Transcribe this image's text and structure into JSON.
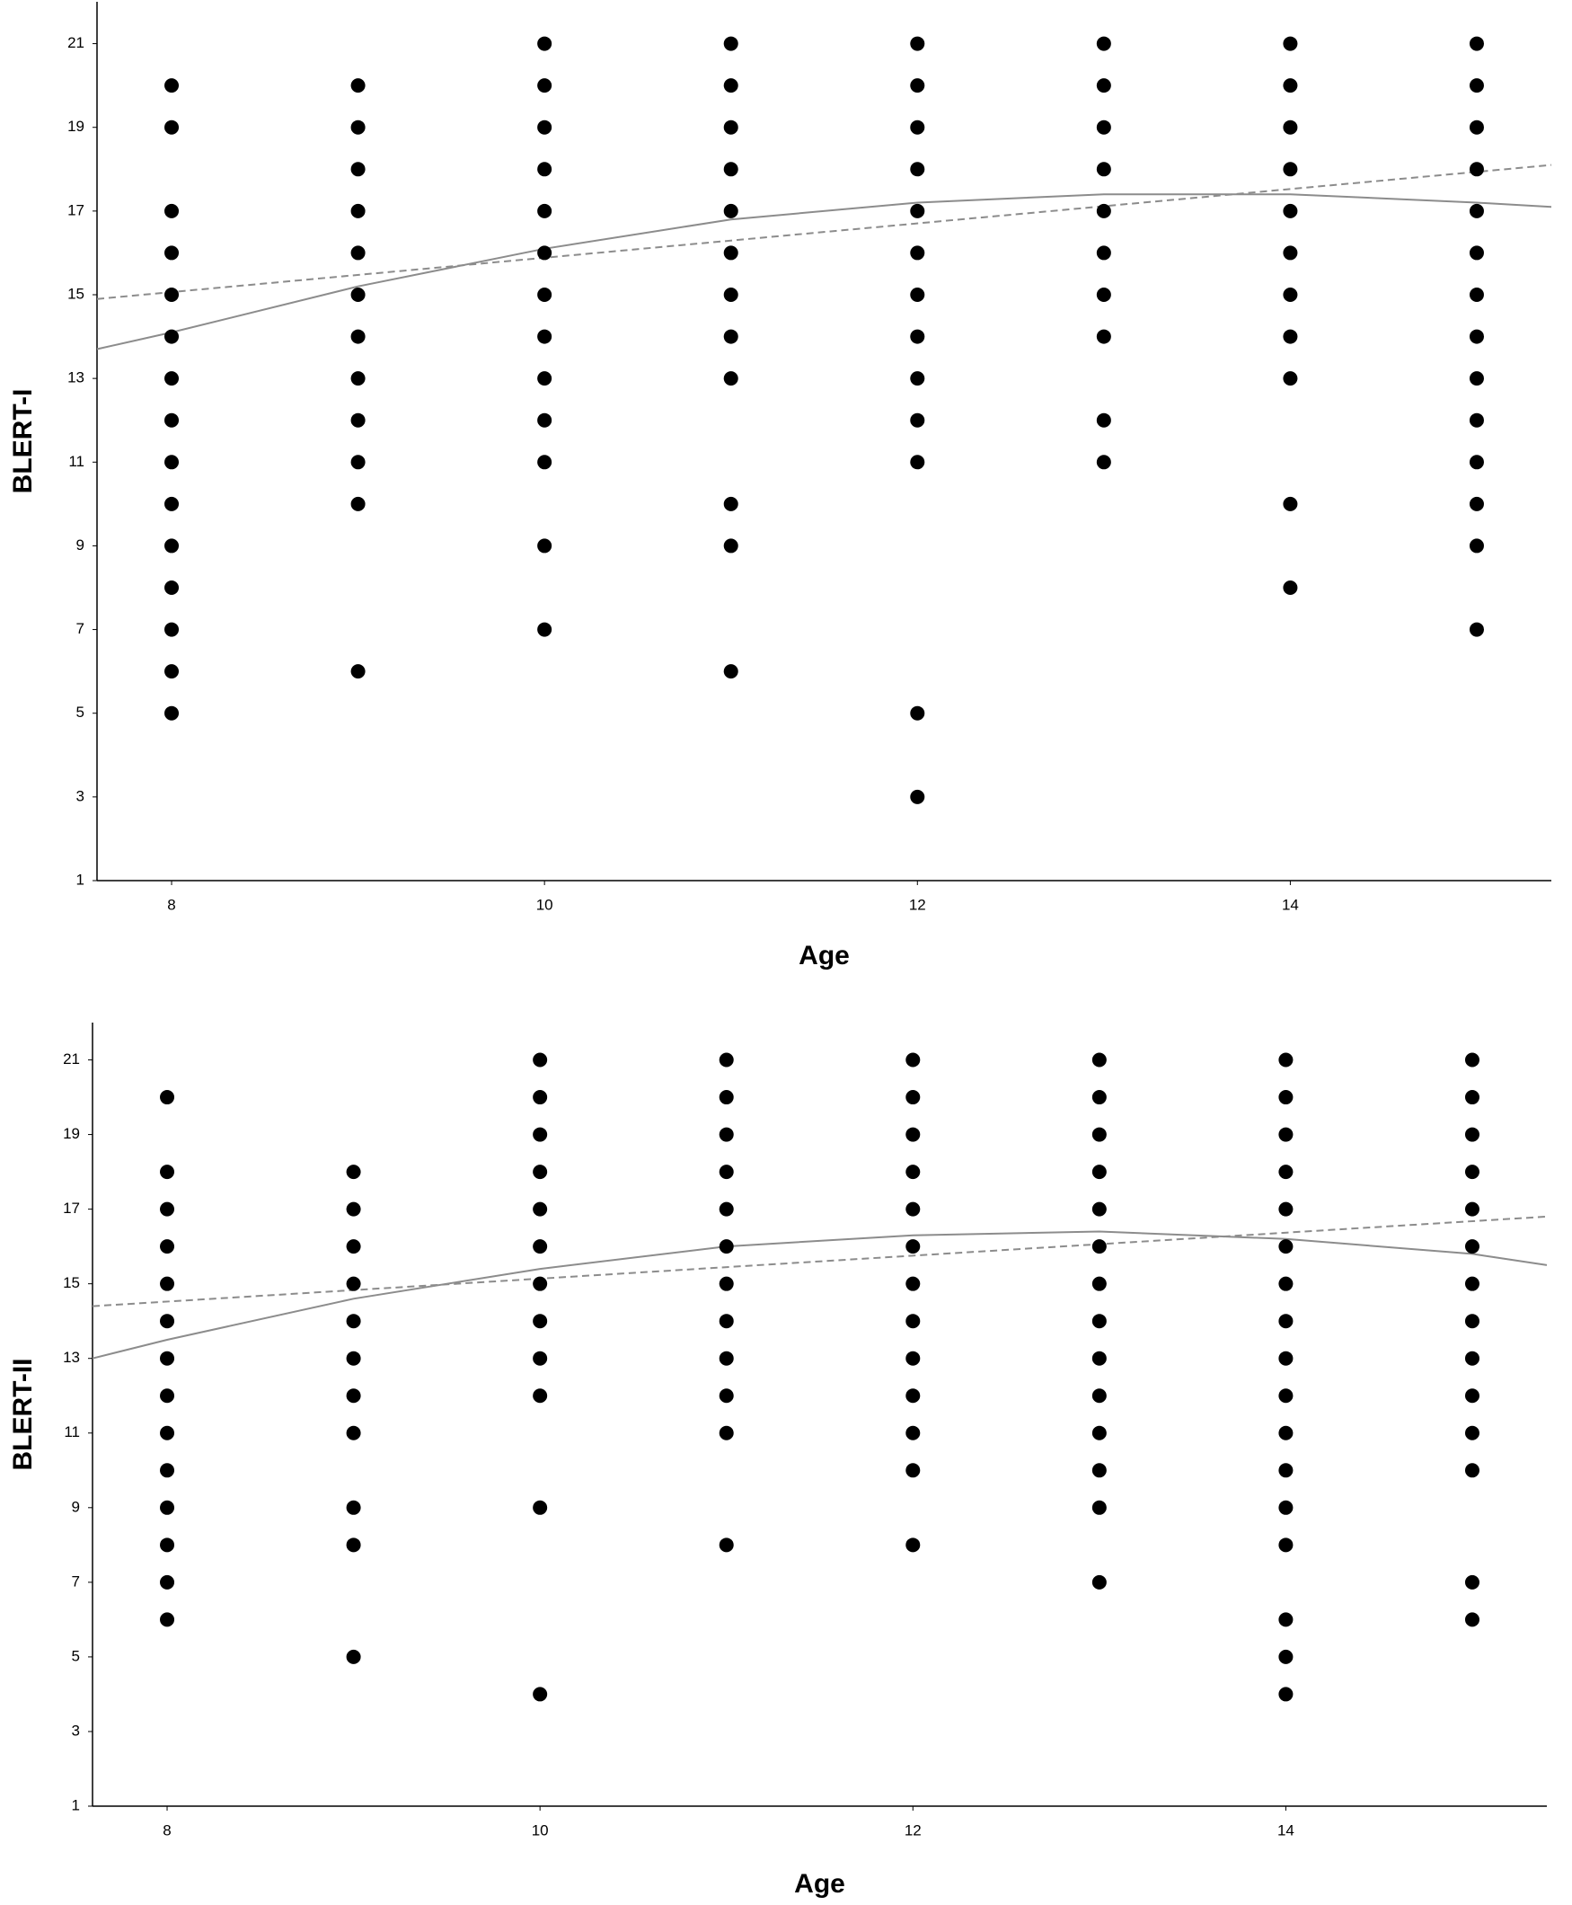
{
  "chart_data": [
    {
      "type": "scatter",
      "x_label": "Age",
      "y_label": "BLERT-I",
      "xlim": [
        7.6,
        15.4
      ],
      "ylim": [
        1,
        22
      ],
      "xticks": [
        8,
        10,
        12,
        14
      ],
      "yticks": [
        1,
        3,
        5,
        7,
        9,
        11,
        13,
        15,
        17,
        19,
        21
      ],
      "color": "#000000",
      "grid": false,
      "series": [
        {
          "x": 8,
          "values": [
            20,
            19,
            17,
            16,
            15,
            14,
            13,
            12,
            11,
            10,
            9,
            8,
            7,
            6,
            5
          ]
        },
        {
          "x": 9,
          "values": [
            20,
            19,
            18,
            17,
            16,
            15,
            14,
            13,
            12,
            11,
            10,
            6
          ]
        },
        {
          "x": 10,
          "values": [
            21,
            20,
            19,
            18,
            17,
            16,
            15,
            14,
            13,
            12,
            11,
            9,
            7
          ]
        },
        {
          "x": 11,
          "values": [
            21,
            20,
            19,
            18,
            17,
            16,
            15,
            14,
            13,
            10,
            9,
            6
          ]
        },
        {
          "x": 12,
          "values": [
            21,
            20,
            19,
            18,
            17,
            16,
            15,
            14,
            13,
            12,
            11,
            5,
            3
          ]
        },
        {
          "x": 13,
          "values": [
            21,
            20,
            19,
            18,
            17,
            16,
            15,
            14,
            12,
            11
          ]
        },
        {
          "x": 14,
          "values": [
            21,
            20,
            19,
            18,
            17,
            16,
            15,
            14,
            13,
            10,
            8
          ]
        },
        {
          "x": 15,
          "values": [
            21,
            20,
            19,
            18,
            17,
            16,
            15,
            14,
            13,
            12,
            11,
            10,
            9,
            7
          ]
        }
      ],
      "fit_lines": [
        {
          "style": "solid",
          "color": "#8c8c8c",
          "x": [
            7.6,
            8,
            9,
            10,
            11,
            12,
            13,
            14,
            15,
            15.4
          ],
          "values": [
            13.7,
            14.1,
            15.2,
            16.1,
            16.8,
            17.2,
            17.4,
            17.4,
            17.2,
            17.1
          ]
        },
        {
          "style": "dashed",
          "color": "#8c8c8c",
          "x": [
            7.6,
            15.4
          ],
          "values": [
            14.9,
            18.1
          ]
        }
      ]
    },
    {
      "type": "scatter",
      "x_label": "Age",
      "y_label": "BLERT-II",
      "xlim": [
        7.6,
        15.4
      ],
      "ylim": [
        1,
        22
      ],
      "xticks": [
        8,
        10,
        12,
        14
      ],
      "yticks": [
        1,
        3,
        5,
        7,
        9,
        11,
        13,
        15,
        17,
        19,
        21
      ],
      "color": "#000000",
      "grid": false,
      "series": [
        {
          "x": 8,
          "values": [
            20,
            18,
            17,
            16,
            15,
            14,
            13,
            12,
            11,
            10,
            9,
            8,
            7,
            6
          ]
        },
        {
          "x": 9,
          "values": [
            18,
            17,
            16,
            15,
            14,
            13,
            12,
            11,
            9,
            8,
            5
          ]
        },
        {
          "x": 10,
          "values": [
            21,
            20,
            19,
            18,
            17,
            16,
            15,
            14,
            13,
            12,
            9,
            4
          ]
        },
        {
          "x": 11,
          "values": [
            21,
            20,
            19,
            18,
            17,
            16,
            15,
            14,
            13,
            12,
            11,
            8
          ]
        },
        {
          "x": 12,
          "values": [
            21,
            20,
            19,
            18,
            17,
            16,
            15,
            14,
            13,
            12,
            11,
            10,
            8
          ]
        },
        {
          "x": 13,
          "values": [
            21,
            20,
            19,
            18,
            17,
            16,
            15,
            14,
            13,
            12,
            11,
            10,
            9,
            7
          ]
        },
        {
          "x": 14,
          "values": [
            21,
            20,
            19,
            18,
            17,
            16,
            15,
            14,
            13,
            12,
            11,
            10,
            9,
            8,
            6,
            5,
            4
          ]
        },
        {
          "x": 15,
          "values": [
            21,
            20,
            19,
            18,
            17,
            16,
            15,
            14,
            13,
            12,
            11,
            10,
            7,
            6
          ]
        }
      ],
      "fit_lines": [
        {
          "style": "solid",
          "color": "#8c8c8c",
          "x": [
            7.6,
            8,
            9,
            10,
            11,
            12,
            13,
            14,
            15,
            15.4
          ],
          "values": [
            13.0,
            13.5,
            14.6,
            15.4,
            16.0,
            16.3,
            16.4,
            16.2,
            15.8,
            15.5
          ]
        },
        {
          "style": "dashed",
          "color": "#8c8c8c",
          "x": [
            7.6,
            15.4
          ],
          "values": [
            14.4,
            16.8
          ]
        }
      ]
    }
  ]
}
